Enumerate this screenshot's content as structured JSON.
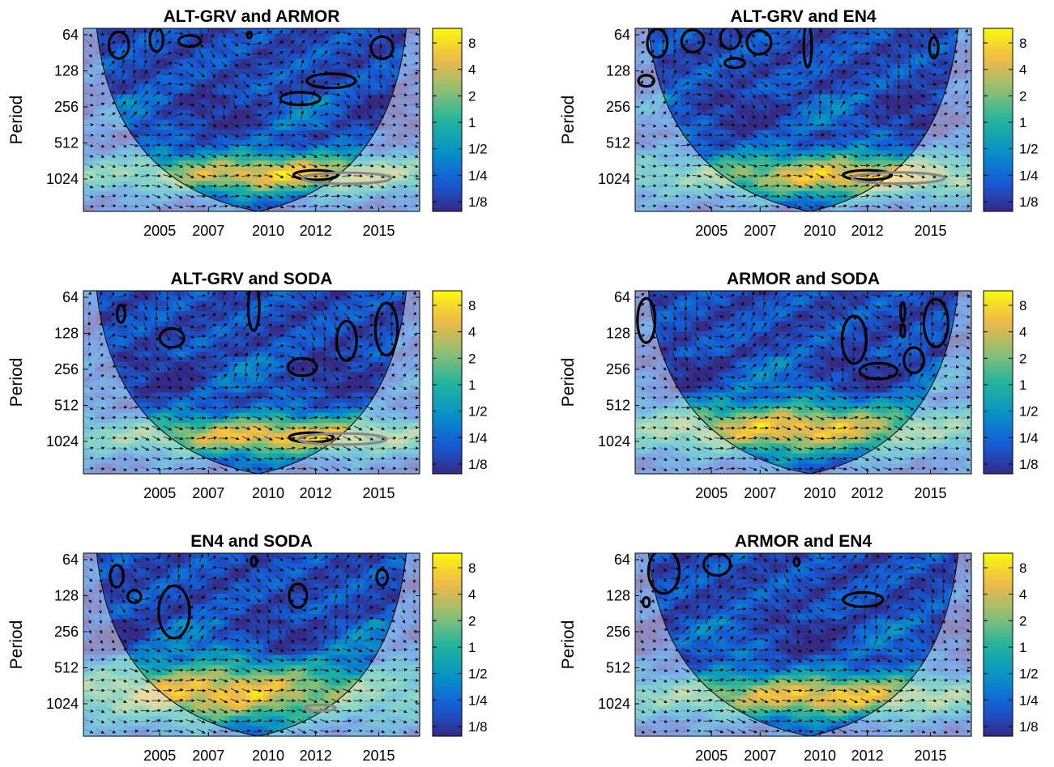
{
  "chart_data": [
    {
      "type": "heatmap",
      "title": "ALT-GRV and ARMOR",
      "ylabel": "Period",
      "x_ticks": [
        "2005",
        "2007",
        "2010",
        "2012",
        "2015"
      ],
      "y_ticks": [
        "64",
        "128",
        "256",
        "512",
        "1024"
      ],
      "colorbar_ticks": [
        "8",
        "4",
        "2",
        "1",
        "1/2",
        "1/4",
        "1/8"
      ],
      "hot_center": 2010.2,
      "hot_period": 930,
      "hot_extent": 0.55,
      "pattern": 1,
      "significance_contours": [
        {
          "x": 2002.9,
          "period": 78,
          "rx": 0.45,
          "ry": 0.17
        },
        {
          "x": 2004.6,
          "period": 70,
          "rx": 0.3,
          "ry": 0.15
        },
        {
          "x": 2006.1,
          "period": 72,
          "rx": 0.5,
          "ry": 0.07
        },
        {
          "x": 2008.8,
          "period": 64,
          "rx": 0.1,
          "ry": 0.04
        },
        {
          "x": 2011.1,
          "period": 218,
          "rx": 0.9,
          "ry": 0.08
        },
        {
          "x": 2012.5,
          "period": 155,
          "rx": 1.1,
          "ry": 0.09
        },
        {
          "x": 2014.8,
          "period": 82,
          "rx": 0.5,
          "ry": 0.14
        },
        {
          "x": 2011.8,
          "period": 950,
          "rx": 1.0,
          "ry": 0.06
        }
      ],
      "coi_contours": [
        {
          "x": 2013.2,
          "period": 1010,
          "rx": 2.0,
          "ry": 0.07
        }
      ]
    },
    {
      "type": "heatmap",
      "title": "ALT-GRV and EN4",
      "ylabel": "Period",
      "x_ticks": [
        "2005",
        "2007",
        "2010",
        "2012",
        "2015"
      ],
      "y_ticks": [
        "64",
        "128",
        "256",
        "512",
        "1024"
      ],
      "colorbar_ticks": [
        "8",
        "4",
        "2",
        "1",
        "1/2",
        "1/4",
        "1/8"
      ],
      "hot_center": 2011.0,
      "hot_period": 960,
      "hot_extent": 0.6,
      "pattern": 2,
      "significance_contours": [
        {
          "x": 2002.3,
          "period": 75,
          "rx": 0.45,
          "ry": 0.18
        },
        {
          "x": 2003.9,
          "period": 72,
          "rx": 0.5,
          "ry": 0.14
        },
        {
          "x": 2005.6,
          "period": 68,
          "rx": 0.45,
          "ry": 0.14
        },
        {
          "x": 2006.9,
          "period": 74,
          "rx": 0.55,
          "ry": 0.15
        },
        {
          "x": 2005.8,
          "period": 110,
          "rx": 0.45,
          "ry": 0.06
        },
        {
          "x": 2001.8,
          "period": 155,
          "rx": 0.35,
          "ry": 0.07
        },
        {
          "x": 2009.1,
          "period": 78,
          "rx": 0.18,
          "ry": 0.28
        },
        {
          "x": 2014.8,
          "period": 82,
          "rx": 0.2,
          "ry": 0.13
        },
        {
          "x": 2011.8,
          "period": 950,
          "rx": 1.1,
          "ry": 0.06
        }
      ],
      "coi_contours": [
        {
          "x": 2013.2,
          "period": 1005,
          "rx": 2.1,
          "ry": 0.07
        }
      ]
    },
    {
      "type": "heatmap",
      "title": "ALT-GRV and SODA",
      "ylabel": "Period",
      "x_ticks": [
        "2005",
        "2007",
        "2010",
        "2012",
        "2015"
      ],
      "y_ticks": [
        "64",
        "128",
        "256",
        "512",
        "1024"
      ],
      "colorbar_ticks": [
        "8",
        "4",
        "2",
        "1",
        "1/2",
        "1/4",
        "1/8"
      ],
      "hot_center": 2010.1,
      "hot_period": 920,
      "hot_extent": 0.55,
      "pattern": 3,
      "significance_contours": [
        {
          "x": 2003.0,
          "period": 88,
          "rx": 0.18,
          "ry": 0.11
        },
        {
          "x": 2005.3,
          "period": 140,
          "rx": 0.55,
          "ry": 0.12
        },
        {
          "x": 2009.0,
          "period": 77,
          "rx": 0.25,
          "ry": 0.3
        },
        {
          "x": 2011.2,
          "period": 245,
          "rx": 0.65,
          "ry": 0.11
        },
        {
          "x": 2013.2,
          "period": 148,
          "rx": 0.45,
          "ry": 0.25
        },
        {
          "x": 2015.0,
          "period": 118,
          "rx": 0.5,
          "ry": 0.33
        },
        {
          "x": 2011.6,
          "period": 950,
          "rx": 1.0,
          "ry": 0.06
        }
      ],
      "coi_contours": [
        {
          "x": 2013.0,
          "period": 980,
          "rx": 2.0,
          "ry": 0.07
        }
      ]
    },
    {
      "type": "heatmap",
      "title": "ARMOR and SODA",
      "ylabel": "Period",
      "x_ticks": [
        "2005",
        "2007",
        "2010",
        "2012",
        "2015"
      ],
      "y_ticks": [
        "64",
        "128",
        "256",
        "512",
        "1024"
      ],
      "colorbar_ticks": [
        "8",
        "4",
        "2",
        "1",
        "1/2",
        "1/4",
        "1/8"
      ],
      "hot_center": 2008.5,
      "hot_period": 800,
      "hot_extent": 0.7,
      "pattern": 4,
      "significance_contours": [
        {
          "x": 2001.8,
          "period": 100,
          "rx": 0.4,
          "ry": 0.28
        },
        {
          "x": 2011.2,
          "period": 145,
          "rx": 0.55,
          "ry": 0.3
        },
        {
          "x": 2012.3,
          "period": 265,
          "rx": 0.85,
          "ry": 0.1
        },
        {
          "x": 2013.9,
          "period": 215,
          "rx": 0.45,
          "ry": 0.16
        },
        {
          "x": 2013.4,
          "period": 85,
          "rx": 0.1,
          "ry": 0.12
        },
        {
          "x": 2013.4,
          "period": 122,
          "rx": 0.1,
          "ry": 0.08
        },
        {
          "x": 2014.9,
          "period": 105,
          "rx": 0.55,
          "ry": 0.3
        }
      ],
      "coi_contours": []
    },
    {
      "type": "heatmap",
      "title": "EN4 and SODA",
      "ylabel": "Period",
      "x_ticks": [
        "2005",
        "2007",
        "2010",
        "2012",
        "2015"
      ],
      "y_ticks": [
        "64",
        "128",
        "256",
        "512",
        "1024"
      ],
      "colorbar_ticks": [
        "8",
        "4",
        "2",
        "1",
        "1/2",
        "1/4",
        "1/8"
      ],
      "hot_center": 2007.5,
      "hot_period": 820,
      "hot_extent": 0.85,
      "pattern": 5,
      "significance_contours": [
        {
          "x": 2002.8,
          "period": 88,
          "rx": 0.3,
          "ry": 0.14
        },
        {
          "x": 2003.6,
          "period": 130,
          "rx": 0.3,
          "ry": 0.08
        },
        {
          "x": 2005.4,
          "period": 175,
          "rx": 0.7,
          "ry": 0.33
        },
        {
          "x": 2011.0,
          "period": 128,
          "rx": 0.4,
          "ry": 0.15
        },
        {
          "x": 2014.8,
          "period": 90,
          "rx": 0.25,
          "ry": 0.1
        },
        {
          "x": 2009.0,
          "period": 66,
          "rx": 0.12,
          "ry": 0.06
        }
      ],
      "coi_contours": [
        {
          "x": 2012.0,
          "period": 1110,
          "rx": 0.7,
          "ry": 0.04
        }
      ]
    },
    {
      "type": "heatmap",
      "title": "ARMOR and EN4",
      "ylabel": "Period",
      "x_ticks": [
        "2005",
        "2007",
        "2010",
        "2012",
        "2015"
      ],
      "y_ticks": [
        "64",
        "128",
        "256",
        "512",
        "1024"
      ],
      "colorbar_ticks": [
        "8",
        "4",
        "2",
        "1",
        "1/2",
        "1/4",
        "1/8"
      ],
      "hot_center": 2009.8,
      "hot_period": 880,
      "hot_extent": 0.6,
      "pattern": 6,
      "significance_contours": [
        {
          "x": 2002.6,
          "period": 80,
          "rx": 0.7,
          "ry": 0.28
        },
        {
          "x": 2005.0,
          "period": 70,
          "rx": 0.6,
          "ry": 0.14
        },
        {
          "x": 2001.8,
          "period": 145,
          "rx": 0.15,
          "ry": 0.06
        },
        {
          "x": 2008.6,
          "period": 67,
          "rx": 0.12,
          "ry": 0.05
        },
        {
          "x": 2011.6,
          "period": 138,
          "rx": 0.9,
          "ry": 0.09
        }
      ],
      "coi_contours": []
    }
  ]
}
